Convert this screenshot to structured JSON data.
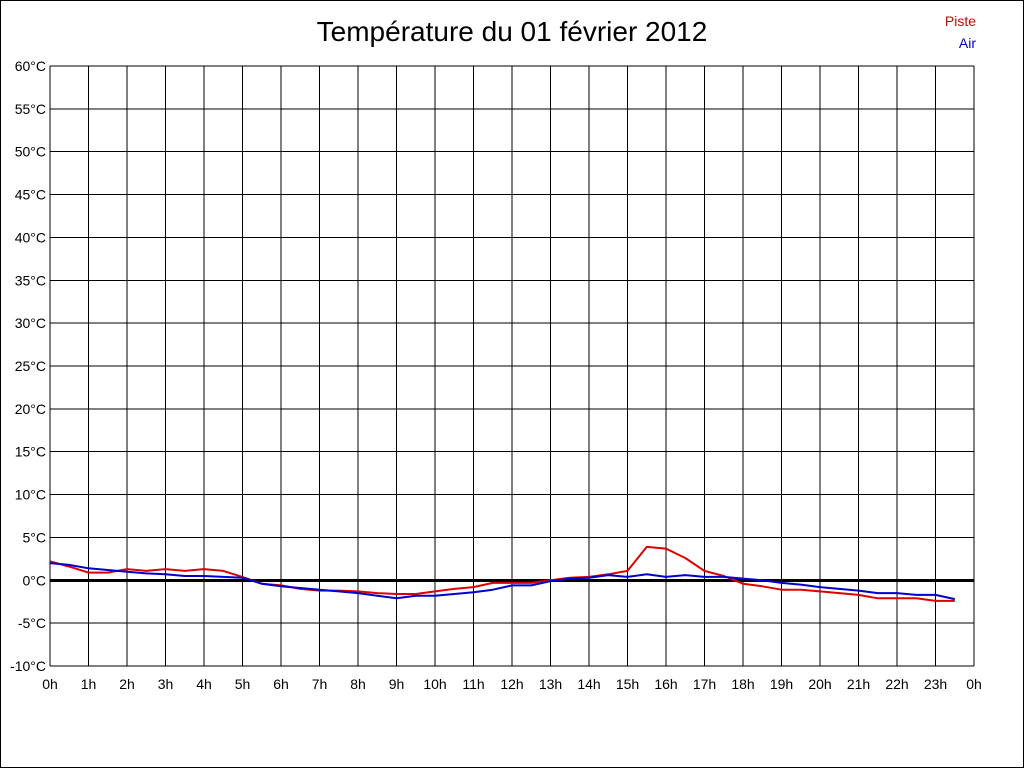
{
  "chart_data": {
    "type": "line",
    "title": "Température du 01 février 2012",
    "xlabel": "",
    "ylabel": "",
    "x_ticks": [
      "0h",
      "1h",
      "2h",
      "3h",
      "4h",
      "5h",
      "6h",
      "7h",
      "8h",
      "9h",
      "10h",
      "11h",
      "12h",
      "13h",
      "14h",
      "15h",
      "16h",
      "17h",
      "18h",
      "19h",
      "20h",
      "21h",
      "22h",
      "23h",
      "0h"
    ],
    "y_ticks": [
      "60°C",
      "55°C",
      "50°C",
      "45°C",
      "40°C",
      "35°C",
      "30°C",
      "25°C",
      "20°C",
      "15°C",
      "10°C",
      "5°C",
      "0°C",
      "-5°C",
      "-10°C"
    ],
    "ylim": [
      -10,
      60
    ],
    "xlim": [
      0,
      24
    ],
    "grid": true,
    "legend_position": "top-right",
    "series": [
      {
        "name": "Piste",
        "color": "#dd0000",
        "x": [
          0,
          0.5,
          1,
          1.5,
          2,
          2.5,
          3,
          3.5,
          4,
          4.5,
          5,
          5.5,
          6,
          6.5,
          7,
          7.5,
          8,
          8.5,
          9,
          9.5,
          10,
          10.5,
          11,
          11.5,
          12,
          12.5,
          13,
          13.5,
          14,
          14.5,
          15,
          15.5,
          16,
          16.5,
          17,
          17.5,
          18,
          18.5,
          19,
          19.5,
          20,
          20.5,
          21,
          21.5,
          22,
          22.5,
          23,
          23.5
        ],
        "values": [
          2.2,
          1.6,
          0.9,
          0.9,
          1.3,
          1.1,
          1.3,
          1.1,
          1.3,
          1.1,
          0.4,
          -0.4,
          -0.6,
          -1.0,
          -1.2,
          -1.2,
          -1.3,
          -1.5,
          -1.6,
          -1.6,
          -1.3,
          -1.0,
          -0.8,
          -0.3,
          -0.3,
          -0.3,
          0.0,
          0.3,
          0.4,
          0.7,
          1.1,
          3.9,
          3.7,
          2.6,
          1.1,
          0.5,
          -0.4,
          -0.7,
          -1.1,
          -1.1,
          -1.3,
          -1.5,
          -1.7,
          -2.1,
          -2.1,
          -2.1,
          -2.4,
          -2.4
        ]
      },
      {
        "name": "Air",
        "color": "#0000cc",
        "x": [
          0,
          0.5,
          1,
          1.5,
          2,
          2.5,
          3,
          3.5,
          4,
          4.5,
          5,
          5.5,
          6,
          6.5,
          7,
          7.5,
          8,
          8.5,
          9,
          9.5,
          10,
          10.5,
          11,
          11.5,
          12,
          12.5,
          13,
          13.5,
          14,
          14.5,
          15,
          15.5,
          16,
          16.5,
          17,
          17.5,
          18,
          18.5,
          19,
          19.5,
          20,
          20.5,
          21,
          21.5,
          22,
          22.5,
          23,
          23.5
        ],
        "values": [
          2.0,
          1.8,
          1.4,
          1.2,
          1.0,
          0.8,
          0.7,
          0.5,
          0.5,
          0.4,
          0.3,
          -0.4,
          -0.7,
          -0.9,
          -1.1,
          -1.3,
          -1.5,
          -1.8,
          -2.1,
          -1.8,
          -1.8,
          -1.6,
          -1.4,
          -1.1,
          -0.6,
          -0.6,
          -0.1,
          0.2,
          0.3,
          0.6,
          0.4,
          0.7,
          0.4,
          0.6,
          0.4,
          0.4,
          0.2,
          0.0,
          -0.3,
          -0.5,
          -0.8,
          -1.0,
          -1.2,
          -1.5,
          -1.5,
          -1.7,
          -1.7,
          -2.2
        ]
      }
    ]
  }
}
